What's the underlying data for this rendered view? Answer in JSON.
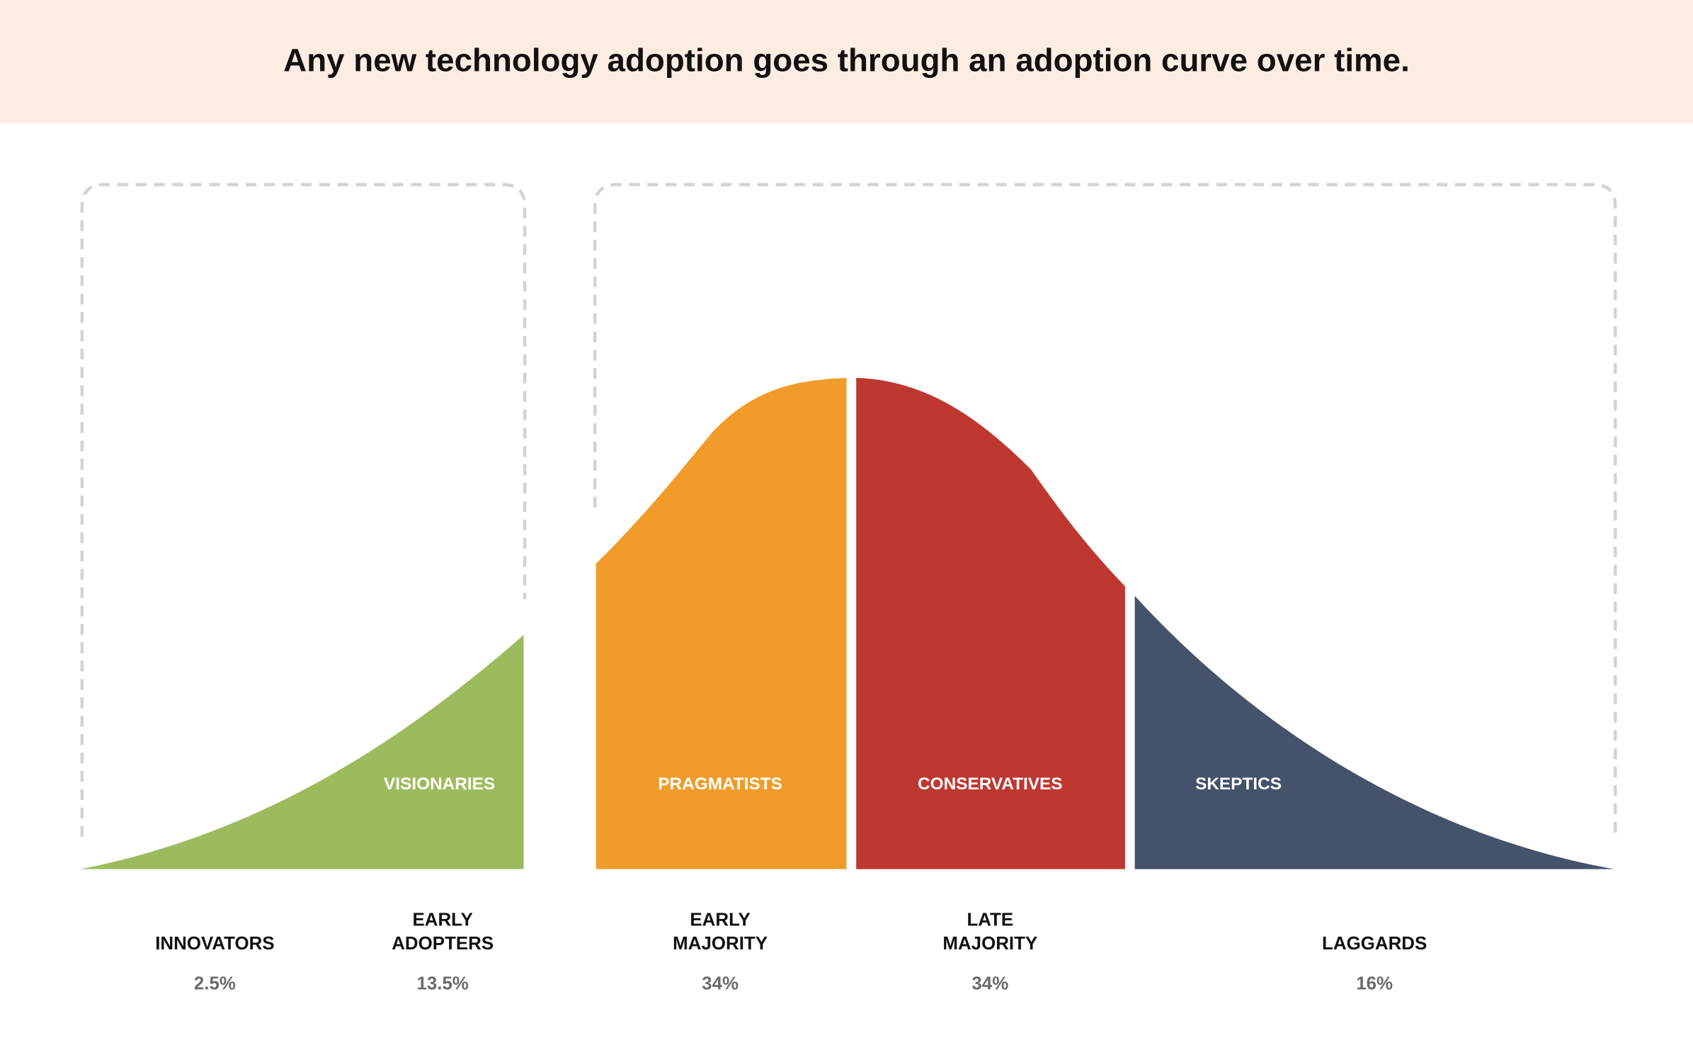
{
  "header": {
    "title": "Any new technology adoption goes through an adoption curve over time."
  },
  "bands": [
    "VISIONARIES",
    "PRAGMATISTS",
    "CONSERVATIVES",
    "SKEPTICS"
  ],
  "categories": [
    {
      "name": [
        "INNOVATORS"
      ],
      "share": "2.5%"
    },
    {
      "name": [
        "EARLY",
        "ADOPTERS"
      ],
      "share": "13.5%"
    },
    {
      "name": [
        "EARLY",
        "MAJORITY"
      ],
      "share": "34%"
    },
    {
      "name": [
        "LATE",
        "MAJORITY"
      ],
      "share": "34%"
    },
    {
      "name": [
        "LAGGARDS"
      ],
      "share": "16%"
    }
  ]
}
